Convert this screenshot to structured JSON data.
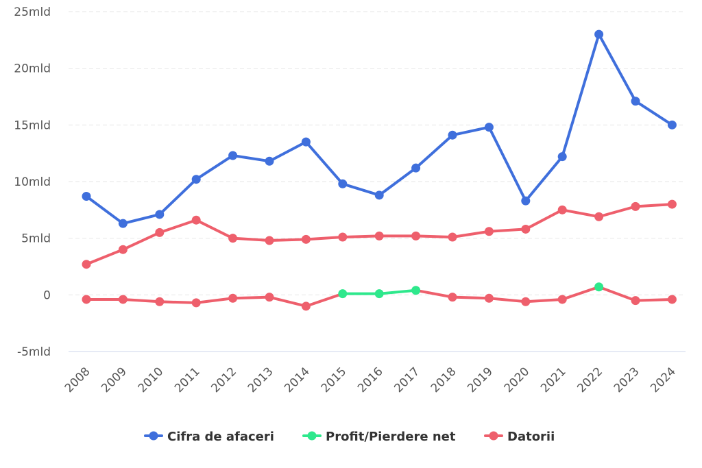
{
  "chart_data": {
    "type": "line",
    "categories": [
      "2008",
      "2009",
      "2010",
      "2011",
      "2012",
      "2013",
      "2014",
      "2015",
      "2016",
      "2017",
      "2018",
      "2019",
      "2020",
      "2021",
      "2022",
      "2023",
      "2024"
    ],
    "ylim": [
      -5,
      25
    ],
    "yticks": [
      {
        "value": 25,
        "label": "25mld"
      },
      {
        "value": 20,
        "label": "20mld"
      },
      {
        "value": 15,
        "label": "15mld"
      },
      {
        "value": 10,
        "label": "10mld"
      },
      {
        "value": 5,
        "label": "5mld"
      },
      {
        "value": 0,
        "label": "0"
      },
      {
        "value": -5,
        "label": "-5mld"
      }
    ],
    "grid": true,
    "legend_position": "bottom",
    "series": [
      {
        "name": "Cifra de afaceri",
        "color": "#3f6fdc",
        "values": [
          8.7,
          6.3,
          7.1,
          10.2,
          12.3,
          11.8,
          13.5,
          9.8,
          8.8,
          11.2,
          14.1,
          14.8,
          8.3,
          12.2,
          23.0,
          17.1,
          15.0
        ]
      },
      {
        "name": "Profit/Pierdere net",
        "color": "#2ee88c",
        "negative_color": "#ee5f6c",
        "values": [
          -0.4,
          -0.4,
          -0.6,
          -0.7,
          -0.3,
          -0.2,
          -1.0,
          0.1,
          0.1,
          0.4,
          -0.2,
          -0.3,
          -0.6,
          -0.4,
          0.7,
          -0.5,
          -0.4
        ]
      },
      {
        "name": "Datorii",
        "color": "#ee5f6c",
        "values": [
          2.7,
          4.0,
          5.5,
          6.6,
          5.0,
          4.8,
          4.9,
          5.1,
          5.2,
          5.2,
          5.1,
          5.6,
          5.8,
          7.5,
          6.9,
          7.8,
          8.0
        ]
      }
    ]
  }
}
